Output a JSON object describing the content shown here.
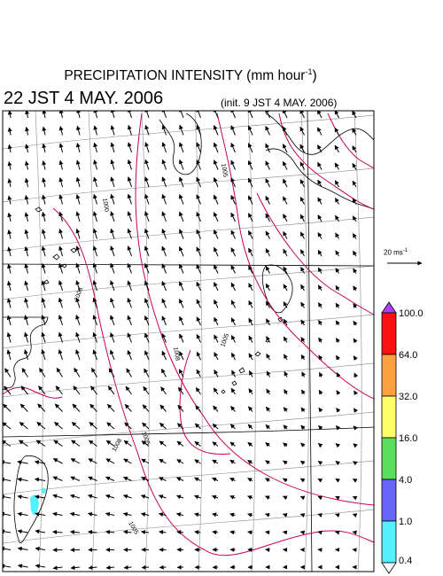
{
  "title": {
    "main": "PRECIPITATION INTENSITY (mm hour",
    "exponent": "-1",
    "close": ")"
  },
  "valid_time": "22 JST 4 MAY. 2006",
  "init_time": "(init. 9 JST 4 MAY. 2006)",
  "wind_reference": {
    "label": "20 ms",
    "exponent": "-1",
    "speed_ms": 20
  },
  "colorbar": {
    "levels": [
      "0.4",
      "1.0",
      "4.0",
      "16.0",
      "32.0",
      "64.0",
      "100.0"
    ],
    "colors": [
      "#55f0ff",
      "#6666ff",
      "#5ae05a",
      "#ffff66",
      "#ffa040",
      "#ff1010"
    ],
    "over_color": "#b040ff",
    "under_color": "#ffffff"
  },
  "isobars": [
    {
      "label": "1000"
    },
    {
      "label": "1005"
    },
    {
      "label": "1008"
    },
    {
      "label": "1008"
    },
    {
      "label": "1005"
    },
    {
      "label": "1005"
    },
    {
      "label": "1005"
    },
    {
      "label": "1008"
    }
  ],
  "colors": {
    "isobar": "#c8005a",
    "coast": "#000000",
    "grid": "#999999",
    "precip": "#55f0ff"
  }
}
